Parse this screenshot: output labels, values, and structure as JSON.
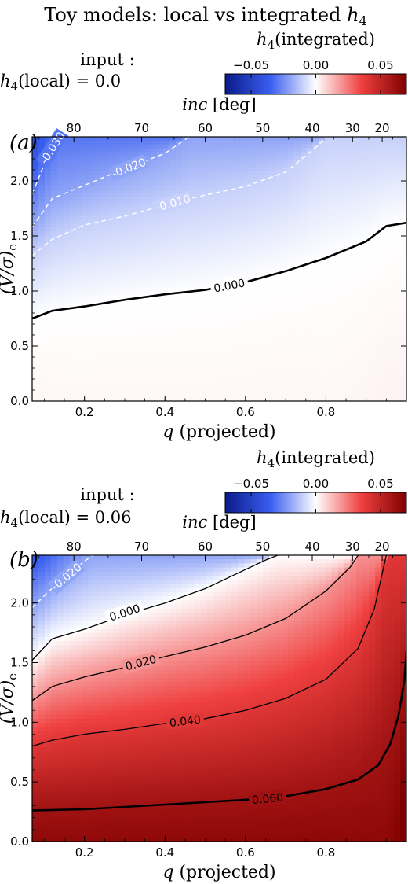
{
  "figure": {
    "title_prefix": "Toy models",
    "title_sep": ":",
    "title_main": "local vs integrated",
    "title_var": "h",
    "title_sub": "4"
  },
  "chart_data": [
    {
      "type": "heatmap",
      "panel_label": "(a)",
      "input_label": "input :",
      "input_var": "h",
      "input_sub": "4",
      "input_text": "(local) = 0.0",
      "h4_local": 0.0,
      "xlabel_var": "q",
      "xlabel_text": "(projected)",
      "xlim": [
        0.07,
        1.0
      ],
      "xticks": [
        0.2,
        0.4,
        0.6,
        0.8
      ],
      "xtick_labels": [
        "0.2",
        "0.4",
        "0.6",
        "0.8"
      ],
      "ylabel": "(V/σ)",
      "ylabel_sub": "e",
      "ylim": [
        0.0,
        2.4
      ],
      "yticks": [
        0.0,
        0.5,
        1.0,
        1.5,
        2.0
      ],
      "ytick_labels": [
        "0.0",
        "0.5",
        "1.0",
        "1.5",
        "2.0"
      ],
      "top_axis_label_var": "inc",
      "top_axis_label_unit": "[deg]",
      "top_ticks": [
        80,
        70,
        60,
        50,
        40,
        30,
        20
      ],
      "top_tick_labels": [
        "80",
        "70",
        "60",
        "50",
        "40",
        "30",
        "20"
      ],
      "colorbar": {
        "label_var": "h",
        "label_sub": "4",
        "label_text": "(integrated)",
        "range": [
          -0.07,
          0.07
        ],
        "ticks": [
          -0.05,
          0.0,
          0.05
        ],
        "tick_labels": [
          "−0.05",
          "0.00",
          "0.05"
        ],
        "colors": [
          "#0a1a8a",
          "#3a5ff0",
          "#ffffff",
          "#f04040",
          "#800000"
        ]
      },
      "contours": [
        {
          "level": -0.03,
          "label": "-0.030",
          "style": "dashed",
          "color": "#ffffff",
          "x": [
            0.07,
            0.1,
            0.14
          ],
          "y": [
            1.88,
            2.15,
            2.4
          ],
          "label_x": 0.12,
          "label_y": 2.3
        },
        {
          "level": -0.02,
          "label": "-0.020",
          "style": "dashed",
          "color": "#ffffff",
          "x": [
            0.07,
            0.12,
            0.2,
            0.28,
            0.4,
            0.46
          ],
          "y": [
            1.58,
            1.84,
            1.96,
            2.08,
            2.25,
            2.4
          ],
          "label_x": 0.31,
          "label_y": 2.12
        },
        {
          "level": -0.01,
          "label": "-0.010",
          "style": "dashed",
          "color": "#ffffff",
          "x": [
            0.07,
            0.12,
            0.2,
            0.3,
            0.45,
            0.6,
            0.7,
            0.78,
            0.8
          ],
          "y": [
            1.32,
            1.47,
            1.6,
            1.68,
            1.83,
            1.95,
            2.08,
            2.32,
            2.4
          ],
          "label_x": 0.42,
          "label_y": 1.8
        },
        {
          "level": 0.0,
          "label": "0.000",
          "style": "solid",
          "color": "#000000",
          "width": 2.6,
          "x": [
            0.07,
            0.12,
            0.2,
            0.3,
            0.4,
            0.5,
            0.6,
            0.7,
            0.8,
            0.9,
            0.95,
            1.0
          ],
          "y": [
            0.75,
            0.82,
            0.86,
            0.92,
            0.97,
            1.01,
            1.08,
            1.18,
            1.3,
            1.45,
            1.59,
            1.62
          ],
          "label_x": 0.56,
          "label_y": 1.05
        }
      ]
    },
    {
      "type": "heatmap",
      "panel_label": "(b)",
      "input_label": "input :",
      "input_var": "h",
      "input_sub": "4",
      "input_text": "(local) = 0.06",
      "h4_local": 0.06,
      "xlabel_var": "q",
      "xlabel_text": "(projected)",
      "xlim": [
        0.07,
        1.0
      ],
      "xticks": [
        0.2,
        0.4,
        0.6,
        0.8
      ],
      "xtick_labels": [
        "0.2",
        "0.4",
        "0.6",
        "0.8"
      ],
      "ylabel": "(V/σ)",
      "ylabel_sub": "e",
      "ylim": [
        0.0,
        2.4
      ],
      "yticks": [
        0.0,
        0.5,
        1.0,
        1.5,
        2.0
      ],
      "ytick_labels": [
        "0.0",
        "0.5",
        "1.0",
        "1.5",
        "2.0"
      ],
      "top_axis_label_var": "inc",
      "top_axis_label_unit": "[deg]",
      "top_ticks": [
        80,
        70,
        60,
        50,
        40,
        30,
        20
      ],
      "top_tick_labels": [
        "80",
        "70",
        "60",
        "50",
        "40",
        "30",
        "20"
      ],
      "colorbar": {
        "label_var": "h",
        "label_sub": "4",
        "label_text": "(integrated)",
        "range": [
          -0.07,
          0.07
        ],
        "ticks": [
          -0.05,
          0.0,
          0.05
        ],
        "tick_labels": [
          "−0.05",
          "0.00",
          "0.05"
        ],
        "colors": [
          "#0a1a8a",
          "#3a5ff0",
          "#ffffff",
          "#f04040",
          "#800000"
        ]
      },
      "contours": [
        {
          "level": -0.02,
          "label": "-0.020",
          "style": "dashed",
          "color": "#ffffff",
          "x": [
            0.07,
            0.1,
            0.15,
            0.2,
            0.22
          ],
          "y": [
            1.96,
            2.06,
            2.22,
            2.35,
            2.4
          ],
          "label_x": 0.155,
          "label_y": 2.22
        },
        {
          "level": 0.0,
          "label": "0.000",
          "style": "solid",
          "color": "#000000",
          "width": 1.3,
          "x": [
            0.07,
            0.12,
            0.2,
            0.3,
            0.4,
            0.5,
            0.55,
            0.6,
            0.65,
            0.68
          ],
          "y": [
            1.52,
            1.7,
            1.78,
            1.9,
            2.0,
            2.12,
            2.2,
            2.28,
            2.36,
            2.4
          ],
          "label_x": 0.3,
          "label_y": 1.92
        },
        {
          "level": 0.02,
          "label": "0.020",
          "style": "solid",
          "color": "#000000",
          "width": 1.3,
          "x": [
            0.07,
            0.12,
            0.2,
            0.3,
            0.4,
            0.5,
            0.6,
            0.7,
            0.8,
            0.86,
            0.88
          ],
          "y": [
            1.18,
            1.3,
            1.38,
            1.46,
            1.55,
            1.63,
            1.73,
            1.87,
            2.1,
            2.3,
            2.4
          ],
          "label_x": 0.34,
          "label_y": 1.5
        },
        {
          "level": 0.04,
          "label": "0.040",
          "style": "solid",
          "color": "#000000",
          "width": 1.3,
          "x": [
            0.07,
            0.12,
            0.2,
            0.3,
            0.4,
            0.5,
            0.6,
            0.7,
            0.8,
            0.88,
            0.92,
            0.94,
            0.95
          ],
          "y": [
            0.8,
            0.85,
            0.9,
            0.94,
            0.99,
            1.03,
            1.1,
            1.2,
            1.36,
            1.62,
            1.95,
            2.25,
            2.4
          ],
          "label_x": 0.45,
          "label_y": 1.01
        },
        {
          "level": 0.06,
          "label": "0.060",
          "style": "solid",
          "color": "#000000",
          "width": 2.6,
          "x": [
            0.07,
            0.2,
            0.3,
            0.4,
            0.5,
            0.6,
            0.7,
            0.8,
            0.88,
            0.93,
            0.96,
            0.98,
            0.995,
            1.0
          ],
          "y": [
            0.26,
            0.27,
            0.29,
            0.31,
            0.33,
            0.35,
            0.38,
            0.44,
            0.52,
            0.64,
            0.82,
            1.05,
            1.35,
            1.6
          ],
          "label_x": 0.655,
          "label_y": 0.36
        }
      ]
    }
  ]
}
